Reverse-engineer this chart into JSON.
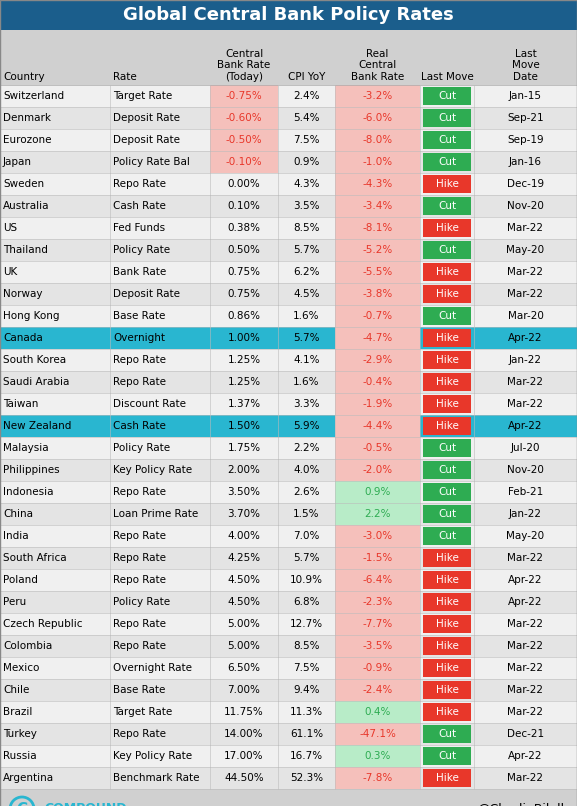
{
  "title": "Global Central Bank Policy Rates",
  "title_bg": "#1b5e8c",
  "title_color": "white",
  "header_bg": "#d0d0d0",
  "rows": [
    [
      "Switzerland",
      "Target Rate",
      "-0.75%",
      "2.4%",
      "-3.2%",
      "Cut",
      "Jan-15"
    ],
    [
      "Denmark",
      "Deposit Rate",
      "-0.60%",
      "5.4%",
      "-6.0%",
      "Cut",
      "Sep-21"
    ],
    [
      "Eurozone",
      "Deposit Rate",
      "-0.50%",
      "7.5%",
      "-8.0%",
      "Cut",
      "Sep-19"
    ],
    [
      "Japan",
      "Policy Rate Bal",
      "-0.10%",
      "0.9%",
      "-1.0%",
      "Cut",
      "Jan-16"
    ],
    [
      "Sweden",
      "Repo Rate",
      "0.00%",
      "4.3%",
      "-4.3%",
      "Hike",
      "Dec-19"
    ],
    [
      "Australia",
      "Cash Rate",
      "0.10%",
      "3.5%",
      "-3.4%",
      "Cut",
      "Nov-20"
    ],
    [
      "US",
      "Fed Funds",
      "0.38%",
      "8.5%",
      "-8.1%",
      "Hike",
      "Mar-22"
    ],
    [
      "Thailand",
      "Policy Rate",
      "0.50%",
      "5.7%",
      "-5.2%",
      "Cut",
      "May-20"
    ],
    [
      "UK",
      "Bank Rate",
      "0.75%",
      "6.2%",
      "-5.5%",
      "Hike",
      "Mar-22"
    ],
    [
      "Norway",
      "Deposit Rate",
      "0.75%",
      "4.5%",
      "-3.8%",
      "Hike",
      "Mar-22"
    ],
    [
      "Hong Kong",
      "Base Rate",
      "0.86%",
      "1.6%",
      "-0.7%",
      "Cut",
      "Mar-20"
    ],
    [
      "Canada",
      "Overnight",
      "1.00%",
      "5.7%",
      "-4.7%",
      "Hike",
      "Apr-22"
    ],
    [
      "South Korea",
      "Repo Rate",
      "1.25%",
      "4.1%",
      "-2.9%",
      "Hike",
      "Jan-22"
    ],
    [
      "Saudi Arabia",
      "Repo Rate",
      "1.25%",
      "1.6%",
      "-0.4%",
      "Hike",
      "Mar-22"
    ],
    [
      "Taiwan",
      "Discount Rate",
      "1.37%",
      "3.3%",
      "-1.9%",
      "Hike",
      "Mar-22"
    ],
    [
      "New Zealand",
      "Cash Rate",
      "1.50%",
      "5.9%",
      "-4.4%",
      "Hike",
      "Apr-22"
    ],
    [
      "Malaysia",
      "Policy Rate",
      "1.75%",
      "2.2%",
      "-0.5%",
      "Cut",
      "Jul-20"
    ],
    [
      "Philippines",
      "Key Policy Rate",
      "2.00%",
      "4.0%",
      "-2.0%",
      "Cut",
      "Nov-20"
    ],
    [
      "Indonesia",
      "Repo Rate",
      "3.50%",
      "2.6%",
      "0.9%",
      "Cut",
      "Feb-21"
    ],
    [
      "China",
      "Loan Prime Rate",
      "3.70%",
      "1.5%",
      "2.2%",
      "Cut",
      "Jan-22"
    ],
    [
      "India",
      "Repo Rate",
      "4.00%",
      "7.0%",
      "-3.0%",
      "Cut",
      "May-20"
    ],
    [
      "South Africa",
      "Repo Rate",
      "4.25%",
      "5.7%",
      "-1.5%",
      "Hike",
      "Mar-22"
    ],
    [
      "Poland",
      "Repo Rate",
      "4.50%",
      "10.9%",
      "-6.4%",
      "Hike",
      "Apr-22"
    ],
    [
      "Peru",
      "Policy Rate",
      "4.50%",
      "6.8%",
      "-2.3%",
      "Hike",
      "Apr-22"
    ],
    [
      "Czech Republic",
      "Repo Rate",
      "5.00%",
      "12.7%",
      "-7.7%",
      "Hike",
      "Mar-22"
    ],
    [
      "Colombia",
      "Repo Rate",
      "5.00%",
      "8.5%",
      "-3.5%",
      "Hike",
      "Mar-22"
    ],
    [
      "Mexico",
      "Overnight Rate",
      "6.50%",
      "7.5%",
      "-0.9%",
      "Hike",
      "Mar-22"
    ],
    [
      "Chile",
      "Base Rate",
      "7.00%",
      "9.4%",
      "-2.4%",
      "Hike",
      "Mar-22"
    ],
    [
      "Brazil",
      "Target Rate",
      "11.75%",
      "11.3%",
      "0.4%",
      "Hike",
      "Mar-22"
    ],
    [
      "Turkey",
      "Repo Rate",
      "14.00%",
      "61.1%",
      "-47.1%",
      "Cut",
      "Dec-21"
    ],
    [
      "Russia",
      "Key Policy Rate",
      "17.00%",
      "16.7%",
      "0.3%",
      "Cut",
      "Apr-22"
    ],
    [
      "Argentina",
      "Benchmark Rate",
      "44.50%",
      "52.3%",
      "-7.8%",
      "Hike",
      "Mar-22"
    ]
  ],
  "highlight_cyan": [
    "Canada",
    "New Zealand"
  ],
  "cyan_color": "#29b6d0",
  "red_color": "#e8372a",
  "green_color": "#2eac52",
  "pink_bg": "#f5c0bb",
  "light_green_bg": "#b8ecc8",
  "footer_bg": "#d0d0d0",
  "col_headers": [
    "Country",
    "Rate",
    "Central\nBank Rate\n(Today)",
    "CPI YoY",
    "Real\nCentral\nBank Rate",
    "Last Move",
    "Last\nMove\nDate"
  ],
  "col_aligns": [
    "left",
    "left",
    "center",
    "center",
    "center",
    "center",
    "center"
  ],
  "title_fontsize": 13,
  "header_fontsize": 7.5,
  "row_fontsize": 7.5
}
